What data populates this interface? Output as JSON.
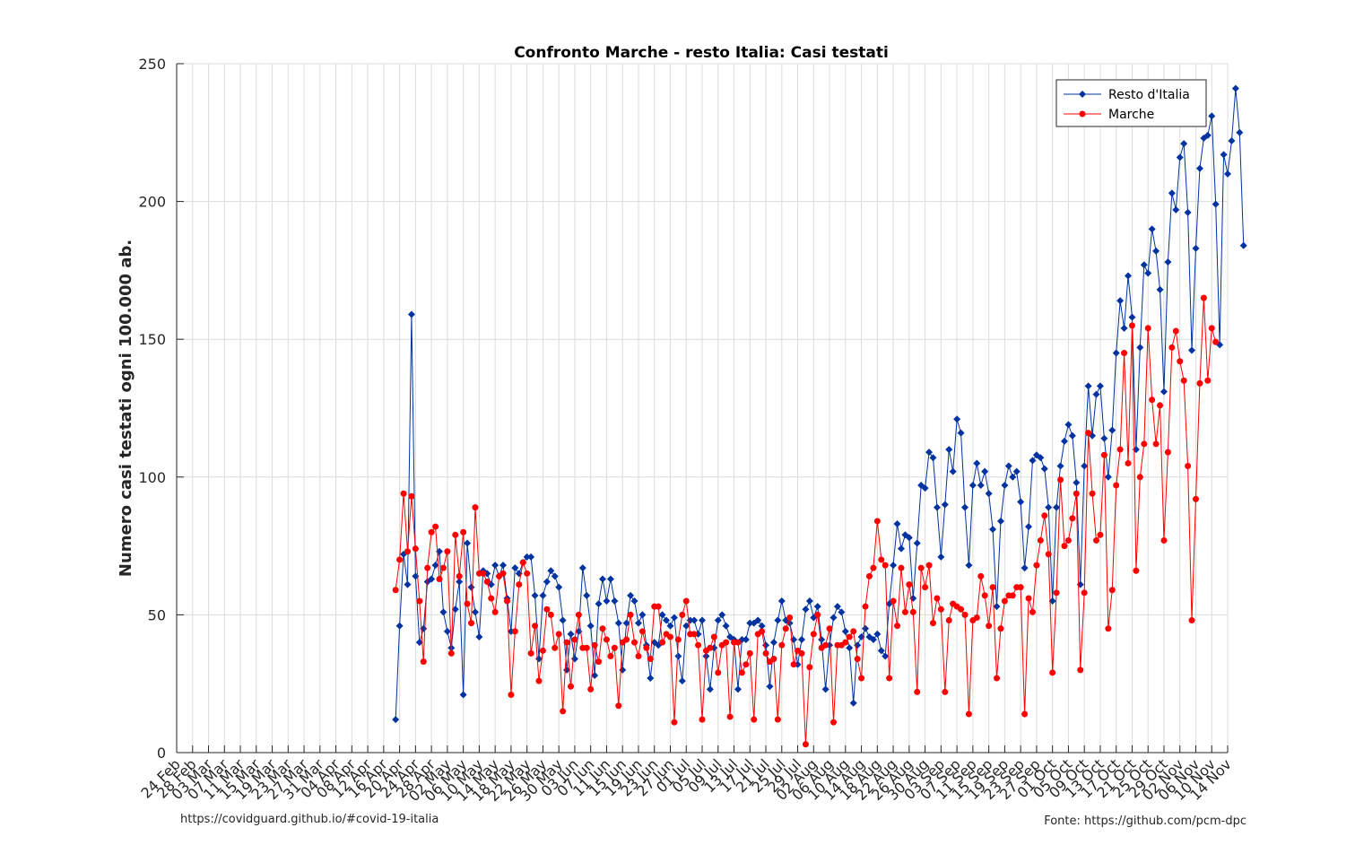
{
  "chart_data": {
    "type": "line",
    "title": "Confronto Marche - resto Italia: Casi testati",
    "xlabel": "",
    "ylabel": "Numero casi testati ogni 100.000 ab.",
    "ylim": [
      0,
      250
    ],
    "yticks": [
      0,
      50,
      100,
      150,
      200,
      250
    ],
    "grid": true,
    "legend_position": "top-right",
    "day_range": {
      "first": "24 Feb",
      "last": "14 Nov",
      "num_days": 265
    },
    "xtick_labels": [
      "24 Feb",
      "28 Feb",
      "03 Mar",
      "07 Mar",
      "11 Mar",
      "15 Mar",
      "19 Mar",
      "23 Mar",
      "27 Mar",
      "31 Mar",
      "04 Apr",
      "08 Apr",
      "12 Apr",
      "16 Apr",
      "20 Apr",
      "24 Apr",
      "28 Apr",
      "02 May",
      "06 May",
      "10 May",
      "14 May",
      "18 May",
      "22 May",
      "26 May",
      "30 May",
      "03 Jun",
      "07 Jun",
      "11 Jun",
      "15 Jun",
      "19 Jun",
      "23 Jun",
      "27 Jun",
      "01 Jul",
      "05 Jul",
      "09 Jul",
      "13 Jul",
      "17 Jul",
      "21 Jul",
      "25 Jul",
      "29 Jul",
      "02 Aug",
      "06 Aug",
      "10 Aug",
      "14 Aug",
      "18 Aug",
      "22 Aug",
      "26 Aug",
      "30 Aug",
      "03 Sep",
      "07 Sep",
      "11 Sep",
      "15 Sep",
      "19 Sep",
      "23 Sep",
      "27 Sep",
      "01 Oct",
      "05 Oct",
      "09 Oct",
      "13 Oct",
      "17 Oct",
      "21 Oct",
      "25 Oct",
      "29 Oct",
      "02 Nov",
      "06 Nov",
      "10 Nov",
      "14 Nov"
    ],
    "series": [
      {
        "name": "Resto d'Italia",
        "color": "#0033a0",
        "start_label": "19 Apr",
        "values": [
          12,
          46,
          72,
          61,
          159,
          64,
          40,
          45,
          62,
          63,
          68,
          73,
          51,
          44,
          38,
          52,
          62,
          21,
          76,
          60,
          51,
          42,
          66,
          65,
          61,
          68,
          64,
          68,
          56,
          44,
          67,
          65,
          69,
          71,
          71,
          57,
          34,
          57,
          62,
          66,
          64,
          60,
          48,
          30,
          43,
          34,
          44,
          67,
          57,
          46,
          28,
          54,
          63,
          55,
          63,
          55,
          47,
          30,
          47,
          57,
          55,
          47,
          50,
          39,
          27,
          40,
          39,
          50,
          48,
          46,
          49,
          35,
          26,
          46,
          48,
          48,
          43,
          48,
          35,
          23,
          38,
          48,
          50,
          46,
          42,
          41,
          23,
          41,
          41,
          47,
          47,
          48,
          46,
          39,
          24,
          40,
          48,
          55,
          48,
          47,
          41,
          32,
          41,
          52,
          55,
          49,
          53,
          41,
          23,
          39,
          49,
          53,
          51,
          44,
          38,
          18,
          39,
          42,
          45,
          42,
          41,
          43,
          37,
          35,
          54,
          68,
          83,
          74,
          79,
          78,
          56,
          76,
          97,
          96,
          109,
          107,
          89,
          71,
          90,
          110,
          102,
          121,
          116,
          89,
          68,
          97,
          105,
          97,
          102,
          94,
          81,
          53,
          84,
          97,
          104,
          100,
          102,
          91,
          67,
          82,
          106,
          108,
          107,
          103,
          89,
          55,
          89,
          104,
          113,
          119,
          115,
          98,
          61,
          104,
          133,
          115,
          130,
          133,
          114,
          100,
          117,
          145,
          164,
          154,
          173,
          158,
          110,
          147,
          177,
          174,
          190,
          182,
          168,
          131,
          178,
          203,
          197,
          216,
          221,
          196,
          146,
          183,
          212,
          223,
          224,
          231,
          199,
          148,
          217,
          210,
          222,
          241,
          225,
          184
        ]
      },
      {
        "name": "Marche",
        "color": "#ff0000",
        "start_label": "19 Apr",
        "values": [
          59,
          70,
          94,
          73,
          93,
          74,
          55,
          33,
          67,
          80,
          82,
          63,
          67,
          73,
          36,
          79,
          64,
          80,
          54,
          47,
          89,
          65,
          65,
          62,
          56,
          51,
          64,
          65,
          55,
          21,
          44,
          61,
          69,
          65,
          36,
          46,
          26,
          37,
          52,
          50,
          38,
          43,
          15,
          40,
          24,
          41,
          50,
          38,
          38,
          23,
          39,
          33,
          45,
          41,
          35,
          38,
          17,
          40,
          41,
          50,
          40,
          35,
          44,
          38,
          34,
          53,
          53,
          40,
          43,
          42,
          11,
          41,
          50,
          55,
          43,
          43,
          39,
          12,
          37,
          38,
          42,
          29,
          39,
          40,
          13,
          40,
          40,
          29,
          32,
          36,
          12,
          43,
          44,
          36,
          33,
          34,
          12,
          39,
          45,
          49,
          32,
          37,
          36,
          3,
          31,
          43,
          50,
          38,
          39,
          45,
          11,
          39,
          39,
          40,
          42,
          44,
          34,
          27,
          53,
          64,
          67,
          84,
          70,
          68,
          27,
          55,
          46,
          67,
          51,
          61,
          51,
          22,
          67,
          60,
          68,
          47,
          56,
          52,
          22,
          48,
          54,
          53,
          52,
          50,
          14,
          48,
          49,
          64,
          57,
          46,
          60,
          27,
          45,
          55,
          57,
          57,
          60,
          60,
          14,
          56,
          51,
          68,
          77,
          86,
          72,
          29,
          58,
          99,
          75,
          77,
          85,
          94,
          30,
          58,
          116,
          94,
          77,
          79,
          108,
          45,
          59,
          97,
          110,
          145,
          105,
          155,
          66,
          100,
          112,
          154,
          128,
          112,
          126,
          77,
          109,
          147,
          153,
          142,
          135,
          104,
          48,
          92,
          134,
          165,
          135,
          154,
          149
        ]
      }
    ]
  },
  "footer": {
    "left": "https://covidguard.github.io/#covid-19-italia",
    "right": "Fonte: https://github.com/pcm-dpc"
  }
}
